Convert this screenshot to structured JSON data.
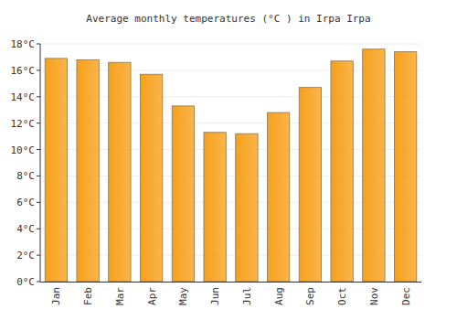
{
  "chart_data": {
    "type": "bar",
    "title": "Average monthly temperatures (°C ) in Irpa Irpa",
    "categories": [
      "Jan",
      "Feb",
      "Mar",
      "Apr",
      "May",
      "Jun",
      "Jul",
      "Aug",
      "Sep",
      "Oct",
      "Nov",
      "Dec"
    ],
    "values": [
      16.9,
      16.8,
      16.6,
      15.7,
      13.3,
      11.3,
      11.2,
      12.8,
      14.7,
      16.7,
      17.6,
      17.4
    ],
    "color": "#f7a01a",
    "ylim": [
      0,
      18
    ],
    "yticks": [
      {
        "value": 0,
        "label": "0°C"
      },
      {
        "value": 2,
        "label": "2°C"
      },
      {
        "value": 4,
        "label": "4°C"
      },
      {
        "value": 6,
        "label": "6°C"
      },
      {
        "value": 8,
        "label": "8°C"
      },
      {
        "value": 10,
        "label": "10°C"
      },
      {
        "value": 12,
        "label": "12°C"
      },
      {
        "value": 14,
        "label": "14°C"
      },
      {
        "value": 16,
        "label": "16°C"
      },
      {
        "value": 18,
        "label": "18°C"
      }
    ],
    "grid": true
  }
}
